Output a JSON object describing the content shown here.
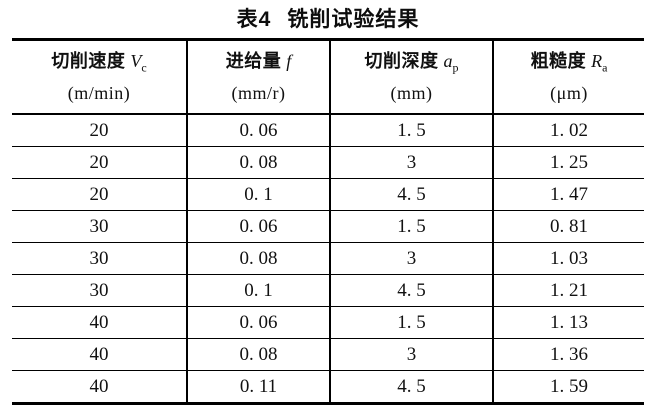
{
  "page": {
    "background": "#ffffff",
    "text_color": "#111111",
    "rule_color": "#000000"
  },
  "caption": {
    "label": "表4",
    "text": "铣削试验结果"
  },
  "table": {
    "columns": [
      {
        "name": "切削速度",
        "symbol": "V",
        "subscript": "c",
        "unit": "(m/min)"
      },
      {
        "name": "进给量",
        "symbol": "f",
        "subscript": "",
        "unit": "(mm/r)"
      },
      {
        "name": "切削深度",
        "symbol": "a",
        "subscript": "p",
        "unit": "(mm)"
      },
      {
        "name": "粗糙度",
        "symbol": "R",
        "subscript": "a",
        "unit": "(μm)"
      }
    ],
    "rows": [
      [
        "20",
        "0. 06",
        "1. 5",
        "1. 02"
      ],
      [
        "20",
        "0. 08",
        "3",
        "1. 25"
      ],
      [
        "20",
        "0. 1",
        "4. 5",
        "1. 47"
      ],
      [
        "30",
        "0. 06",
        "1. 5",
        "0. 81"
      ],
      [
        "30",
        "0. 08",
        "3",
        "1. 03"
      ],
      [
        "30",
        "0. 1",
        "4. 5",
        "1. 21"
      ],
      [
        "40",
        "0. 06",
        "1. 5",
        "1. 13"
      ],
      [
        "40",
        "0. 08",
        "3",
        "1. 36"
      ],
      [
        "40",
        "0. 11",
        "4. 5",
        "1. 59"
      ]
    ]
  }
}
